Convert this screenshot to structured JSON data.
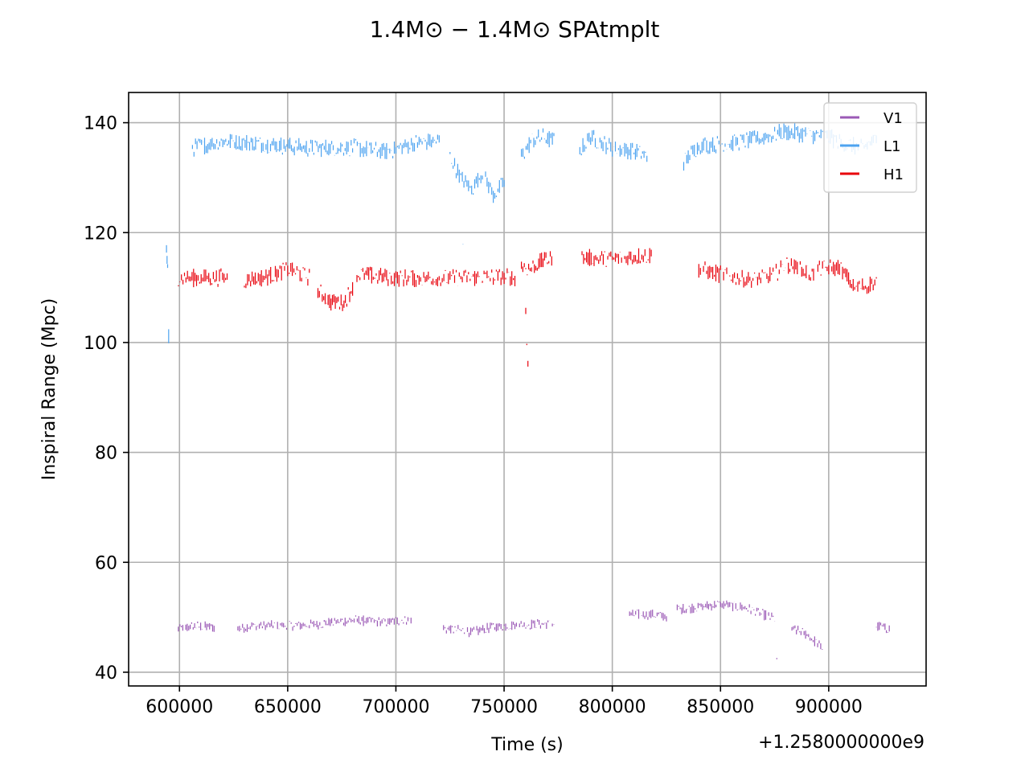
{
  "chart_data": {
    "type": "scatter",
    "title": "1.4M⊙ − 1.4M⊙ SPAtmplt",
    "xlabel": "Time (s)",
    "ylabel": "Inspiral Range (Mpc)",
    "x_offset_label": "+1.2580000000e9",
    "xlim": [
      576500,
      945000
    ],
    "ylim": [
      37.5,
      145.5
    ],
    "xticks": [
      600000,
      650000,
      700000,
      750000,
      800000,
      850000,
      900000
    ],
    "xtick_labels": [
      "600000",
      "650000",
      "700000",
      "750000",
      "800000",
      "850000",
      "900000"
    ],
    "yticks": [
      40,
      60,
      80,
      100,
      120,
      140
    ],
    "ytick_labels": [
      "40",
      "60",
      "80",
      "100",
      "120",
      "140"
    ],
    "grid": true,
    "legend": "upper right",
    "series": [
      {
        "name": "V1",
        "color": "#9b59b6",
        "segments": [
          {
            "x": [
              599500,
              607000,
              616000
            ],
            "y": [
              48.0,
              48.5,
              48.3
            ]
          },
          {
            "x": [
              627000,
              632000,
              660000,
              680000,
              695000,
              707000
            ],
            "y": [
              48.0,
              48.5,
              48.7,
              49.6,
              49.2,
              49.8
            ]
          },
          {
            "x": [
              722000,
              728000,
              736000,
              745000,
              760000,
              773000
            ],
            "y": [
              48.0,
              47.8,
              47.4,
              48.4,
              48.8,
              49.0
            ]
          },
          {
            "x": [
              808000,
              815000,
              825000
            ],
            "y": [
              50.5,
              50.7,
              50.3
            ]
          },
          {
            "x": [
              830000,
              850000,
              862000,
              875000
            ],
            "y": [
              51.5,
              52.5,
              51.8,
              49.8
            ]
          },
          {
            "x": [
              876000
            ],
            "y": [
              42.0
            ]
          },
          {
            "x": [
              883000,
              890000,
              897000
            ],
            "y": [
              48.0,
              47.0,
              44.5
            ]
          },
          {
            "x": [
              922000,
              928000
            ],
            "y": [
              48.5,
              48.0
            ]
          }
        ]
      },
      {
        "name": "L1",
        "color": "#4da3f0",
        "segments": [
          {
            "x": [
              594000,
              594500
            ],
            "y": [
              117.0,
              113.5
            ]
          },
          {
            "x": [
              595000
            ],
            "y": [
              101.0
            ]
          },
          {
            "x": [
              606000,
              620000,
              640000,
              660000,
              680000,
              695000,
              710000,
              720000
            ],
            "y": [
              135.5,
              136.8,
              136.2,
              135.5,
              135.6,
              134.8,
              136.5,
              136.8
            ]
          },
          {
            "x": [
              725000,
              730000,
              735000,
              740000,
              745000,
              750000
            ],
            "y": [
              134.0,
              130.0,
              128.0,
              131.0,
              127.0,
              129.0
            ]
          },
          {
            "x": [
              731000
            ],
            "y": [
              118.0
            ]
          },
          {
            "x": [
              758000,
              763000,
              768000,
              773000
            ],
            "y": [
              134.0,
              137.0,
              137.5,
              136.8
            ]
          },
          {
            "x": [
              785000,
              790000,
              800000,
              810000,
              816000
            ],
            "y": [
              135.0,
              137.5,
              135.5,
              135.0,
              134.0
            ]
          },
          {
            "x": [
              833000,
              840000,
              850000,
              865000,
              880000,
              890000,
              900000,
              905000,
              915000,
              922000
            ],
            "y": [
              133.0,
              136.0,
              136.2,
              137.0,
              138.5,
              138.0,
              137.5,
              136.5,
              135.5,
              137.0
            ]
          }
        ]
      },
      {
        "name": "H1",
        "color": "#e8000b",
        "segments": [
          {
            "x": [
              599500,
              610000,
              622000
            ],
            "y": [
              112.0,
              111.8,
              112.0
            ]
          },
          {
            "x": [
              630000,
              640000,
              650000,
              660000
            ],
            "y": [
              111.5,
              112.0,
              113.5,
              112.0
            ]
          },
          {
            "x": [
              664000,
              670000,
              676000,
              680000
            ],
            "y": [
              109.5,
              107.5,
              107.5,
              110.0
            ]
          },
          {
            "x": [
              682000,
              695000,
              710000,
              725000,
              740000,
              755000
            ],
            "y": [
              112.5,
              112.0,
              111.8,
              111.8,
              112.0,
              112.0
            ]
          },
          {
            "x": [
              758000,
              762000,
              768000,
              772000
            ],
            "y": [
              114.0,
              113.5,
              115.0,
              115.5
            ]
          },
          {
            "x": [
              760000,
              761000
            ],
            "y": [
              105.0,
              97.0
            ]
          },
          {
            "x": [
              786000,
              800000,
              810000,
              818000
            ],
            "y": [
              115.5,
              115.3,
              115.8,
              116.0
            ]
          },
          {
            "x": [
              840000,
              850000,
              865000,
              875000,
              880000,
              893000
            ],
            "y": [
              113.5,
              112.5,
              111.5,
              112.5,
              114.5,
              112.5
            ]
          },
          {
            "x": [
              895000,
              905000,
              912000,
              922000
            ],
            "y": [
              113.5,
              113.8,
              110.0,
              111.0
            ]
          }
        ]
      }
    ]
  }
}
